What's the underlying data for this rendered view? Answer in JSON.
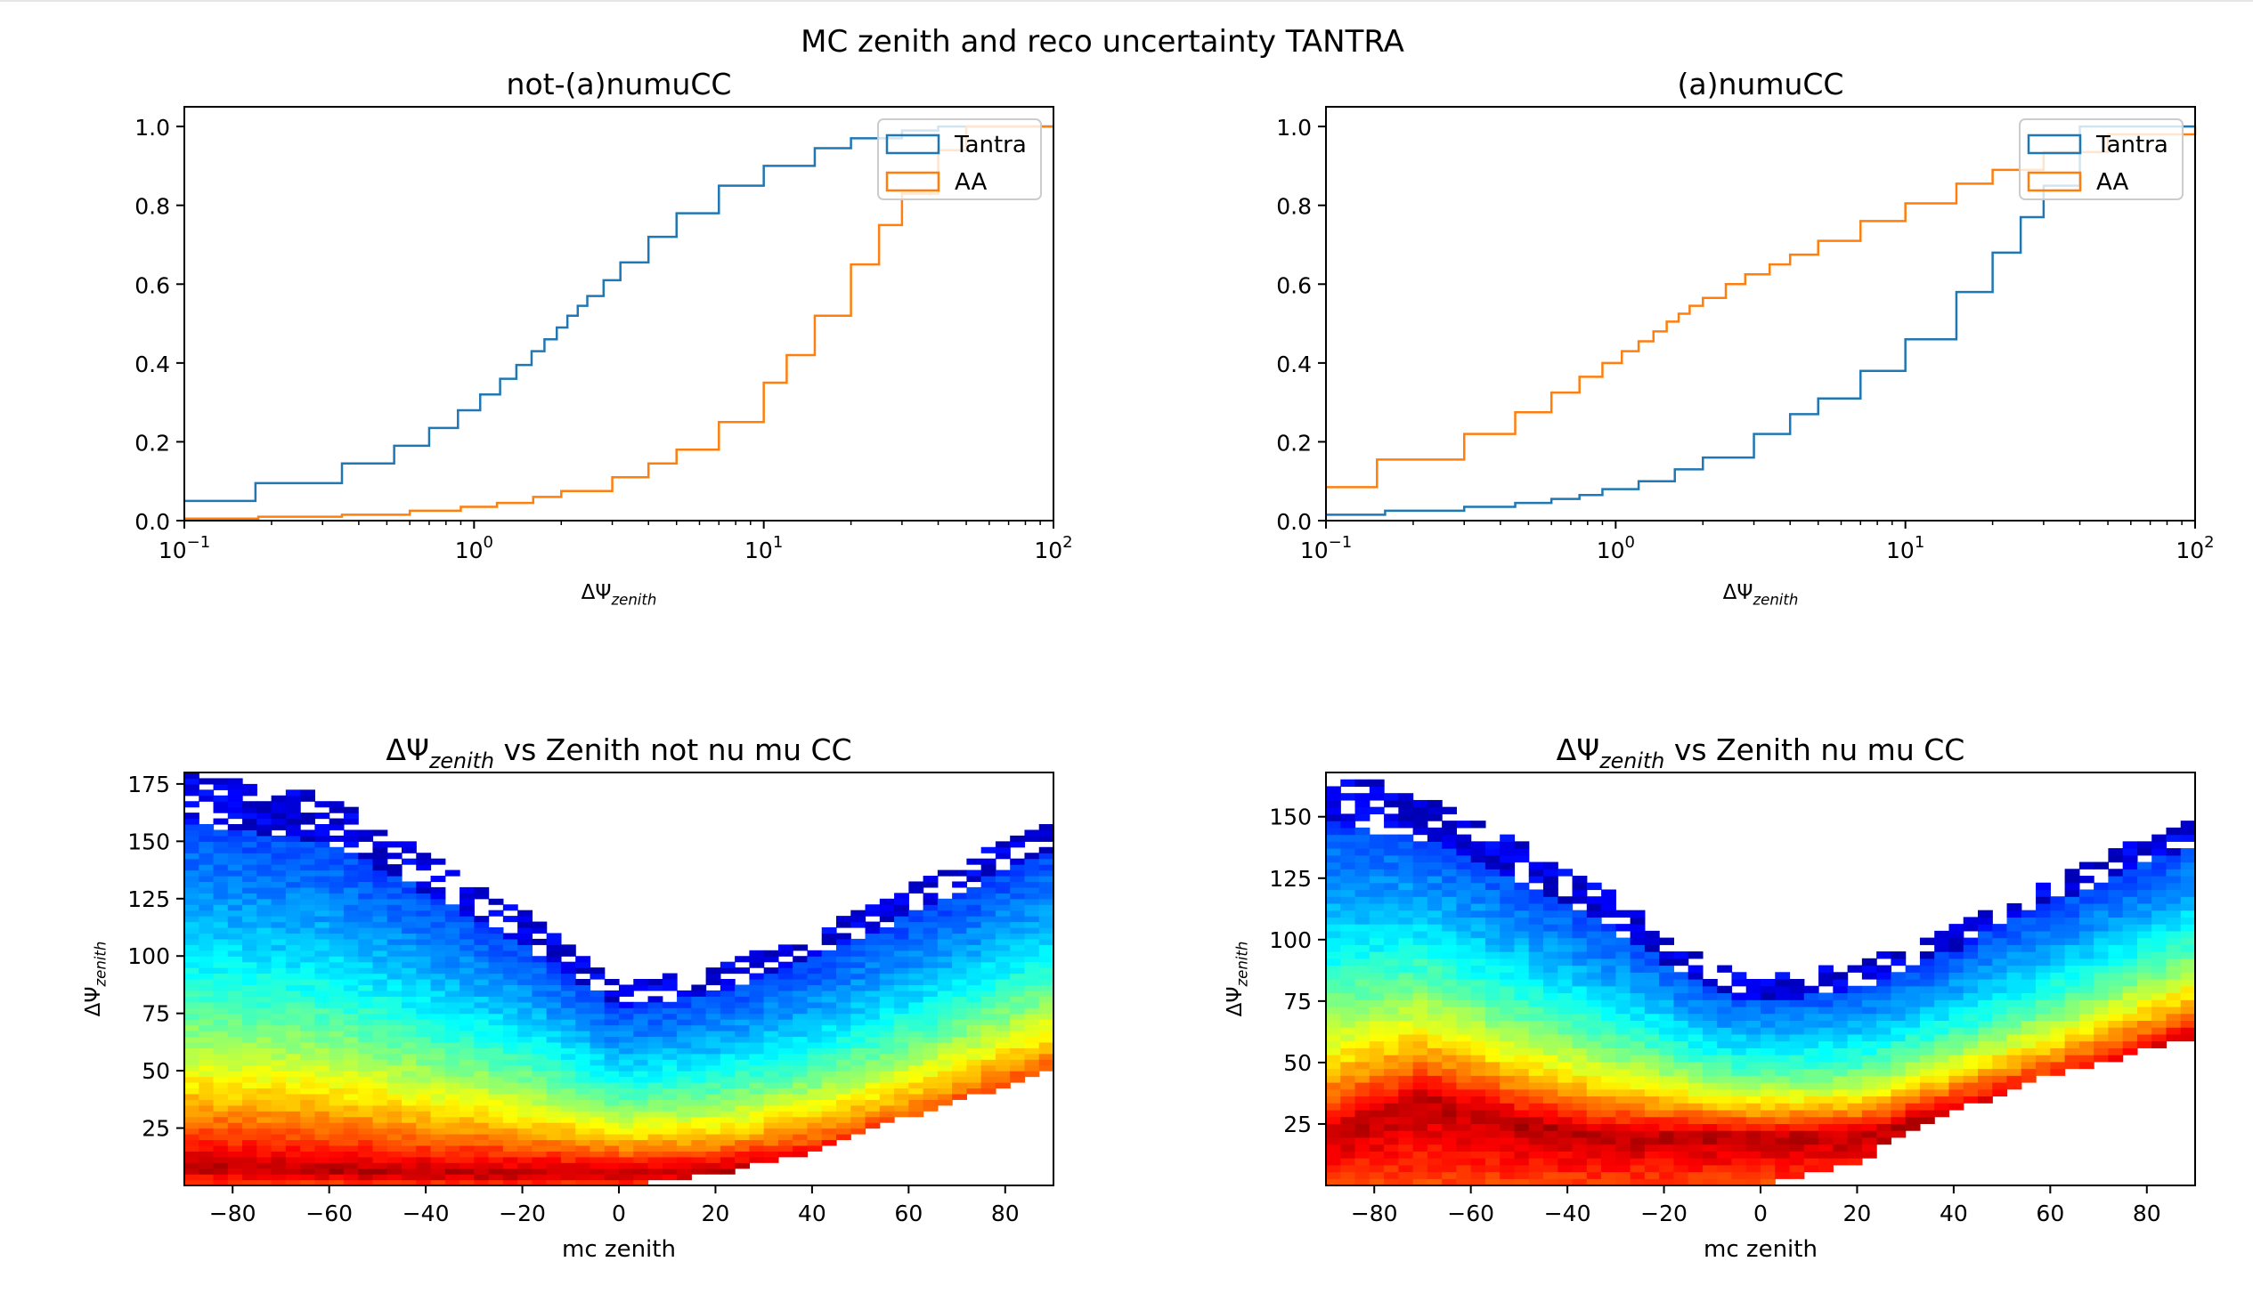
{
  "figure": {
    "suptitle": "MC zenith and reco uncertainty TANTRA"
  },
  "colors": {
    "tantra": "#1f77b4",
    "aa": "#ff7f0e",
    "colormap": "jet"
  },
  "chart_data": [
    {
      "type": "line",
      "title": "not-(a)numuCC",
      "xlabel": "ΔΨ",
      "xlabel_sub": "zenith",
      "ylabel": "",
      "xscale": "log",
      "xlim": [
        0.1,
        100
      ],
      "ylim": [
        0,
        1.05
      ],
      "x_ticks": [
        "−1",
        "0",
        "1",
        "2"
      ],
      "y_ticks": [
        "0.0",
        "0.2",
        "0.4",
        "0.6",
        "0.8",
        "1.0"
      ],
      "legend": {
        "placement": "top-right",
        "entries": [
          "Tantra",
          "AA"
        ]
      },
      "series": [
        {
          "name": "Tantra",
          "style": "step",
          "color": "#1f77b4",
          "x": [
            0.1,
            0.176,
            0.35,
            0.53,
            0.7,
            0.88,
            1.05,
            1.23,
            1.4,
            1.58,
            1.75,
            1.93,
            2.1,
            2.28,
            2.46,
            2.8,
            3.2,
            4.0,
            5.0,
            7.0,
            10.0,
            15.0,
            20.0,
            30.0,
            40.0,
            100.0
          ],
          "y": [
            0.05,
            0.095,
            0.145,
            0.19,
            0.235,
            0.28,
            0.32,
            0.36,
            0.395,
            0.43,
            0.46,
            0.49,
            0.52,
            0.545,
            0.57,
            0.61,
            0.655,
            0.72,
            0.78,
            0.85,
            0.9,
            0.945,
            0.97,
            0.99,
            1.0,
            1.0
          ]
        },
        {
          "name": "AA",
          "style": "step",
          "color": "#ff7f0e",
          "x": [
            0.1,
            0.18,
            0.35,
            0.6,
            0.9,
            1.2,
            1.6,
            2.0,
            3.0,
            4.0,
            5.0,
            7.0,
            10.0,
            12.0,
            15.0,
            20.0,
            25.0,
            30.0,
            40.0,
            50.0,
            100.0
          ],
          "y": [
            0.005,
            0.01,
            0.015,
            0.025,
            0.035,
            0.045,
            0.06,
            0.075,
            0.11,
            0.145,
            0.18,
            0.25,
            0.35,
            0.42,
            0.52,
            0.65,
            0.75,
            0.83,
            0.94,
            1.0,
            1.0
          ]
        }
      ]
    },
    {
      "type": "line",
      "title": "(a)numuCC",
      "xlabel": "ΔΨ",
      "xlabel_sub": "zenith",
      "ylabel": "",
      "xscale": "log",
      "xlim": [
        0.1,
        100
      ],
      "ylim": [
        0,
        1.05
      ],
      "x_ticks": [
        "−1",
        "0",
        "1",
        "2"
      ],
      "y_ticks": [
        "0.0",
        "0.2",
        "0.4",
        "0.6",
        "0.8",
        "1.0"
      ],
      "legend": {
        "placement": "top-right",
        "entries": [
          "Tantra",
          "AA"
        ]
      },
      "series": [
        {
          "name": "Tantra",
          "style": "step",
          "color": "#1f77b4",
          "x": [
            0.1,
            0.16,
            0.3,
            0.45,
            0.6,
            0.75,
            0.9,
            1.2,
            1.6,
            2.0,
            3.0,
            4.0,
            5.0,
            7.0,
            10.0,
            15.0,
            20.0,
            25.0,
            30.0,
            40.0,
            100.0
          ],
          "y": [
            0.015,
            0.025,
            0.035,
            0.045,
            0.055,
            0.065,
            0.08,
            0.1,
            0.13,
            0.16,
            0.22,
            0.27,
            0.31,
            0.38,
            0.46,
            0.58,
            0.68,
            0.77,
            0.85,
            1.0,
            1.0
          ]
        },
        {
          "name": "AA",
          "style": "step",
          "color": "#ff7f0e",
          "x": [
            0.1,
            0.15,
            0.3,
            0.45,
            0.6,
            0.75,
            0.9,
            1.05,
            1.2,
            1.35,
            1.5,
            1.65,
            1.8,
            2.0,
            2.4,
            2.8,
            3.4,
            4.0,
            5.0,
            7.0,
            10.0,
            15.0,
            20.0,
            30.0,
            50.0,
            100.0
          ],
          "y": [
            0.085,
            0.155,
            0.22,
            0.275,
            0.325,
            0.365,
            0.4,
            0.43,
            0.455,
            0.48,
            0.505,
            0.525,
            0.545,
            0.565,
            0.6,
            0.625,
            0.65,
            0.675,
            0.71,
            0.76,
            0.805,
            0.855,
            0.89,
            0.935,
            0.98,
            1.0
          ]
        }
      ]
    },
    {
      "type": "heatmap",
      "title_math": "ΔΨ",
      "title_sub": "zenith",
      "title_rest": " vs Zenith not nu mu CC",
      "xlabel": "mc zenith",
      "ylabel": "ΔΨ",
      "ylabel_sub": "zenith",
      "xlim": [
        -90,
        90
      ],
      "ylim": [
        0,
        180
      ],
      "x_ticks": [
        "−80",
        "−60",
        "−40",
        "−20",
        "0",
        "20",
        "40",
        "60",
        "80"
      ],
      "y_ticks": [
        "25",
        "50",
        "75",
        "100",
        "125",
        "150",
        "175"
      ],
      "colormap": "jet",
      "bins": {
        "nx": 60,
        "ny": 72
      },
      "density_ridge": {
        "x": [
          -90,
          -60,
          -40,
          -20,
          0,
          20,
          40,
          60,
          90
        ],
        "lower": [
          0,
          0,
          0,
          0,
          0,
          5,
          15,
          30,
          50
        ],
        "upper": [
          180,
          170,
          145,
          120,
          88,
          95,
          110,
          130,
          160
        ],
        "peak": [
          8,
          6,
          5,
          5,
          5,
          6,
          10,
          20,
          40
        ]
      }
    },
    {
      "type": "heatmap",
      "title_math": "ΔΨ",
      "title_sub": "zenith",
      "title_rest": " vs Zenith nu mu CC",
      "xlabel": "mc zenith",
      "ylabel": "ΔΨ",
      "ylabel_sub": "zenith",
      "xlim": [
        -90,
        90
      ],
      "ylim": [
        0,
        168
      ],
      "x_ticks": [
        "−80",
        "−60",
        "−40",
        "−20",
        "0",
        "20",
        "40",
        "60",
        "80"
      ],
      "y_ticks": [
        "25",
        "50",
        "75",
        "100",
        "125",
        "150"
      ],
      "colormap": "jet",
      "bins": {
        "nx": 60,
        "ny": 60
      },
      "density_ridge": {
        "x": [
          -90,
          -70,
          -50,
          -30,
          -10,
          0,
          20,
          40,
          60,
          90
        ],
        "lower": [
          0,
          0,
          0,
          0,
          0,
          0,
          10,
          30,
          45,
          60
        ],
        "upper": [
          168,
          160,
          140,
          118,
          90,
          85,
          90,
          105,
          125,
          150
        ],
        "peak": [
          20,
          35,
          25,
          20,
          20,
          20,
          20,
          30,
          40,
          60
        ]
      }
    }
  ]
}
